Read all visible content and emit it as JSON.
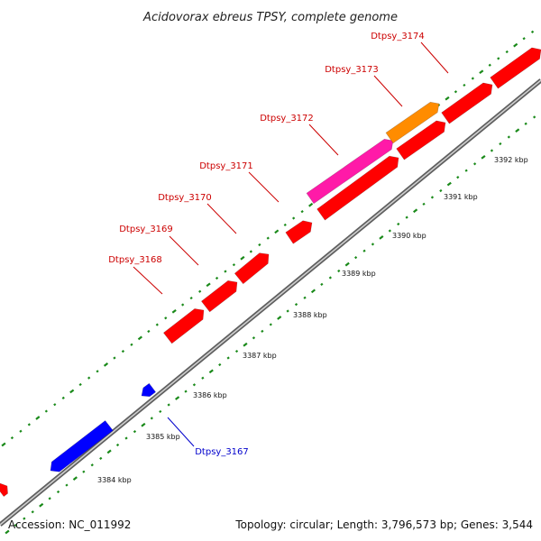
{
  "title": "Acidovorax ebreus TPSY, complete genome",
  "footer": {
    "accession": "Accession: NC_011992",
    "summary": "Topology: circular; Length: 3,796,573 bp; Genes: 3,544"
  },
  "colors": {
    "backbone": "#8a8a8a",
    "forward_gene": "#ff0000",
    "reverse_gene": "#0000ff",
    "highlight_orange": "#ff8c00",
    "highlight_pink": "#ff1aa8",
    "tick": "#1a8a1a",
    "label_red": "#cc0000",
    "label_blue": "#0000cc"
  },
  "ticks": [
    {
      "label": "3384 kbp"
    },
    {
      "label": "3385 kbp"
    },
    {
      "label": "3386 kbp"
    },
    {
      "label": "3387 kbp"
    },
    {
      "label": "3388 kbp"
    },
    {
      "label": "3389 kbp"
    },
    {
      "label": "3390 kbp"
    },
    {
      "label": "3391 kbp"
    },
    {
      "label": "3392 kbp"
    }
  ],
  "gene_labels": [
    {
      "name": "Dtpsy_3168",
      "color": "label_red"
    },
    {
      "name": "Dtpsy_3169",
      "color": "label_red"
    },
    {
      "name": "Dtpsy_3170",
      "color": "label_red"
    },
    {
      "name": "Dtpsy_3171",
      "color": "label_red"
    },
    {
      "name": "Dtpsy_3172",
      "color": "label_red"
    },
    {
      "name": "Dtpsy_3173",
      "color": "label_red"
    },
    {
      "name": "Dtpsy_3174",
      "color": "label_red"
    },
    {
      "name": "Dtpsy_3167",
      "color": "label_blue"
    }
  ]
}
